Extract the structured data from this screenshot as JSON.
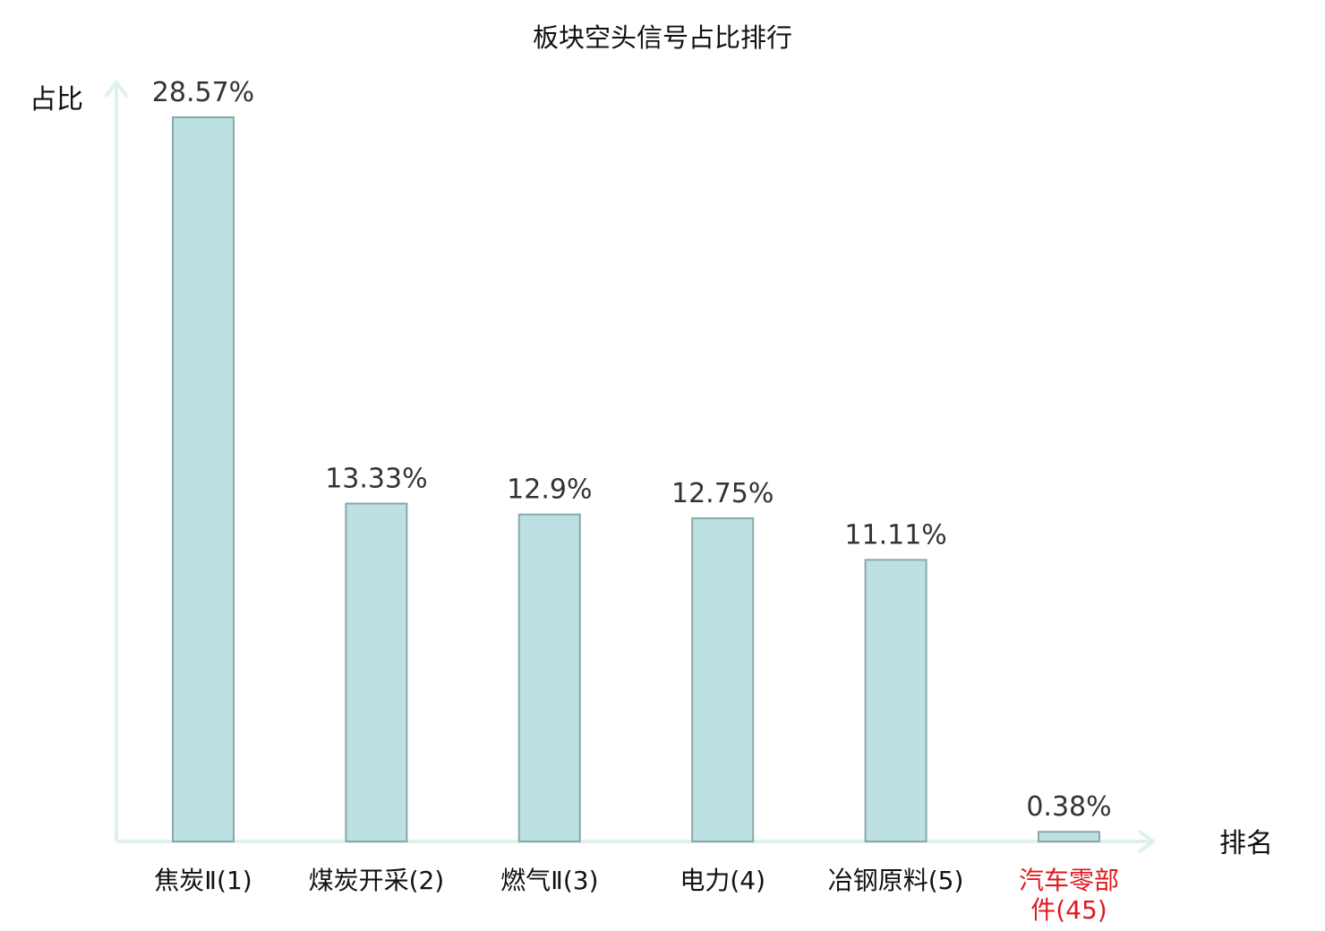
{
  "chart_data": {
    "type": "bar",
    "title": "板块空头信号占比排行",
    "ylabel": "占比",
    "xlabel": "排名",
    "categories": [
      "焦炭Ⅱ(1)",
      "煤炭开采(2)",
      "燃气Ⅱ(3)",
      "电力(4)",
      "冶钢原料(5)",
      "汽车零部件(45)"
    ],
    "values": [
      28.57,
      13.33,
      12.9,
      12.75,
      11.11,
      0.38
    ],
    "value_labels": [
      "28.57%",
      "13.33%",
      "12.9%",
      "12.75%",
      "11.11%",
      "0.38%"
    ],
    "highlight_index": 5,
    "ylim": [
      0,
      28.57
    ],
    "grid": false,
    "legend": "none",
    "colors": {
      "bar_fill": "#bde0e2",
      "bar_stroke": "#8aa8aa",
      "axis": "#dff1ee",
      "highlight_text": "#e0191e"
    }
  }
}
